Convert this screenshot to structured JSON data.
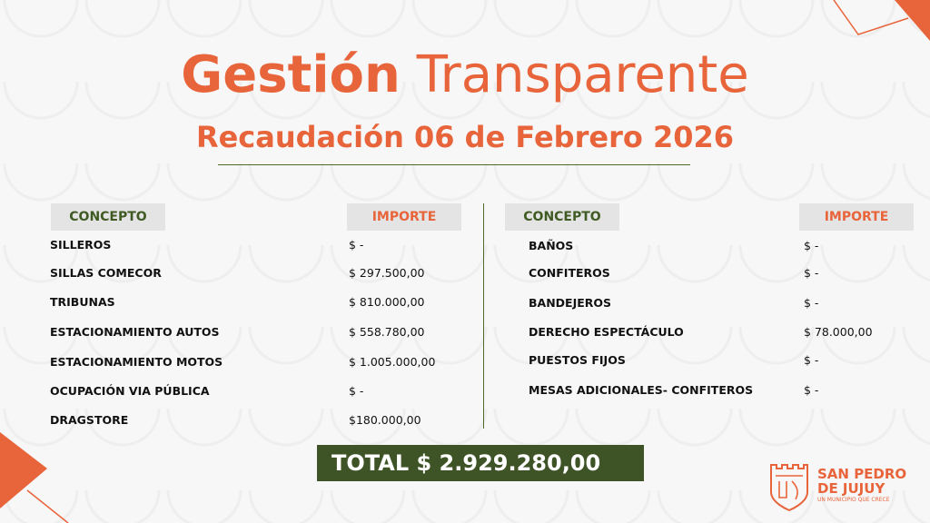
{
  "title": {
    "bold": "Gestión",
    "light": "Transparente"
  },
  "subtitle": "Recaudación 06 de Febrero 2026",
  "headers": {
    "concepto": "CONCEPTO",
    "importe": "IMPORTE"
  },
  "left": [
    {
      "c": "SILLEROS",
      "v": "$ -"
    },
    {
      "c": "SILLAS COMECOR",
      "v": "$ 297.500,00"
    },
    {
      "c": "TRIBUNAS",
      "v": "$ 810.000,00"
    },
    {
      "c": "ESTACIONAMIENTO AUTOS",
      "v": "$ 558.780,00"
    },
    {
      "c": "ESTACIONAMIENTO MOTOS",
      "v": "$ 1.005.000,00"
    },
    {
      "c": "OCUPACIÓN VIA PÚBLICA",
      "v": "$ -"
    },
    {
      "c": "DRAGSTORE",
      "v": "$180.000,00"
    }
  ],
  "right": [
    {
      "c": "BAÑOS",
      "v": "$ -"
    },
    {
      "c": "CONFITEROS",
      "v": "$ -"
    },
    {
      "c": "BANDEJEROS",
      "v": "$ -"
    },
    {
      "c": "DERECHO ESPECTÁCULO",
      "v": "$ 78.000,00"
    },
    {
      "c": "PUESTOS FIJOS",
      "v": "$ -"
    },
    {
      "c": "MESAS ADICIONALES- CONFITEROS",
      "v": "$ -"
    }
  ],
  "total": "TOTAL $ 2.929.280,00",
  "logo": {
    "line1": "SAN PEDRO",
    "line2": "DE JUJUY",
    "tagline": "UN MUNICIPIO QUE CRECE"
  },
  "colors": {
    "accent": "#e8643a",
    "green": "#3f5426"
  }
}
